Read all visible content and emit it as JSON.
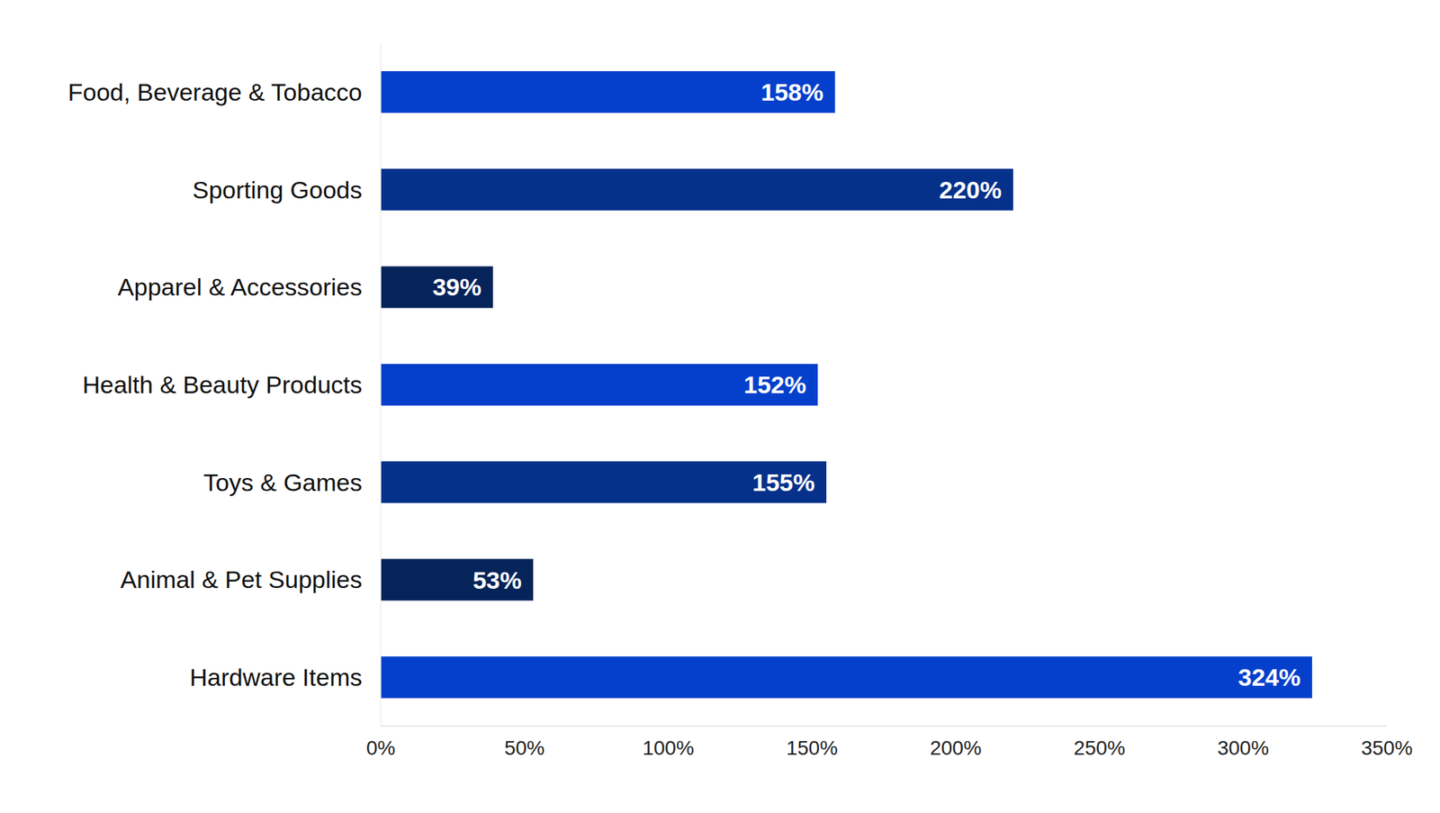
{
  "chart_data": {
    "type": "bar",
    "orientation": "horizontal",
    "categories": [
      "Food, Beverage & Tobacco",
      "Sporting Goods",
      "Apparel & Accessories",
      "Health & Beauty Products",
      "Toys & Games",
      "Animal & Pet Supplies",
      "Hardware Items"
    ],
    "values": [
      158,
      220,
      39,
      152,
      155,
      53,
      324
    ],
    "value_labels": [
      "158%",
      "220%",
      "39%",
      "152%",
      "155%",
      "53%",
      "324%"
    ],
    "colors": [
      "#0540cc",
      "#06318a",
      "#062459",
      "#0540cc",
      "#06318a",
      "#062459",
      "#0540cc"
    ],
    "xlim": [
      0,
      350
    ],
    "xticks": [
      {
        "value": 0,
        "label": "0%"
      },
      {
        "value": 50,
        "label": "50%"
      },
      {
        "value": 100,
        "label": "100%"
      },
      {
        "value": 150,
        "label": "150%"
      },
      {
        "value": 200,
        "label": "200%"
      },
      {
        "value": 250,
        "label": "250%"
      },
      {
        "value": 300,
        "label": "300%"
      },
      {
        "value": 350,
        "label": "350%"
      }
    ],
    "data_labels": true,
    "grid": false
  }
}
